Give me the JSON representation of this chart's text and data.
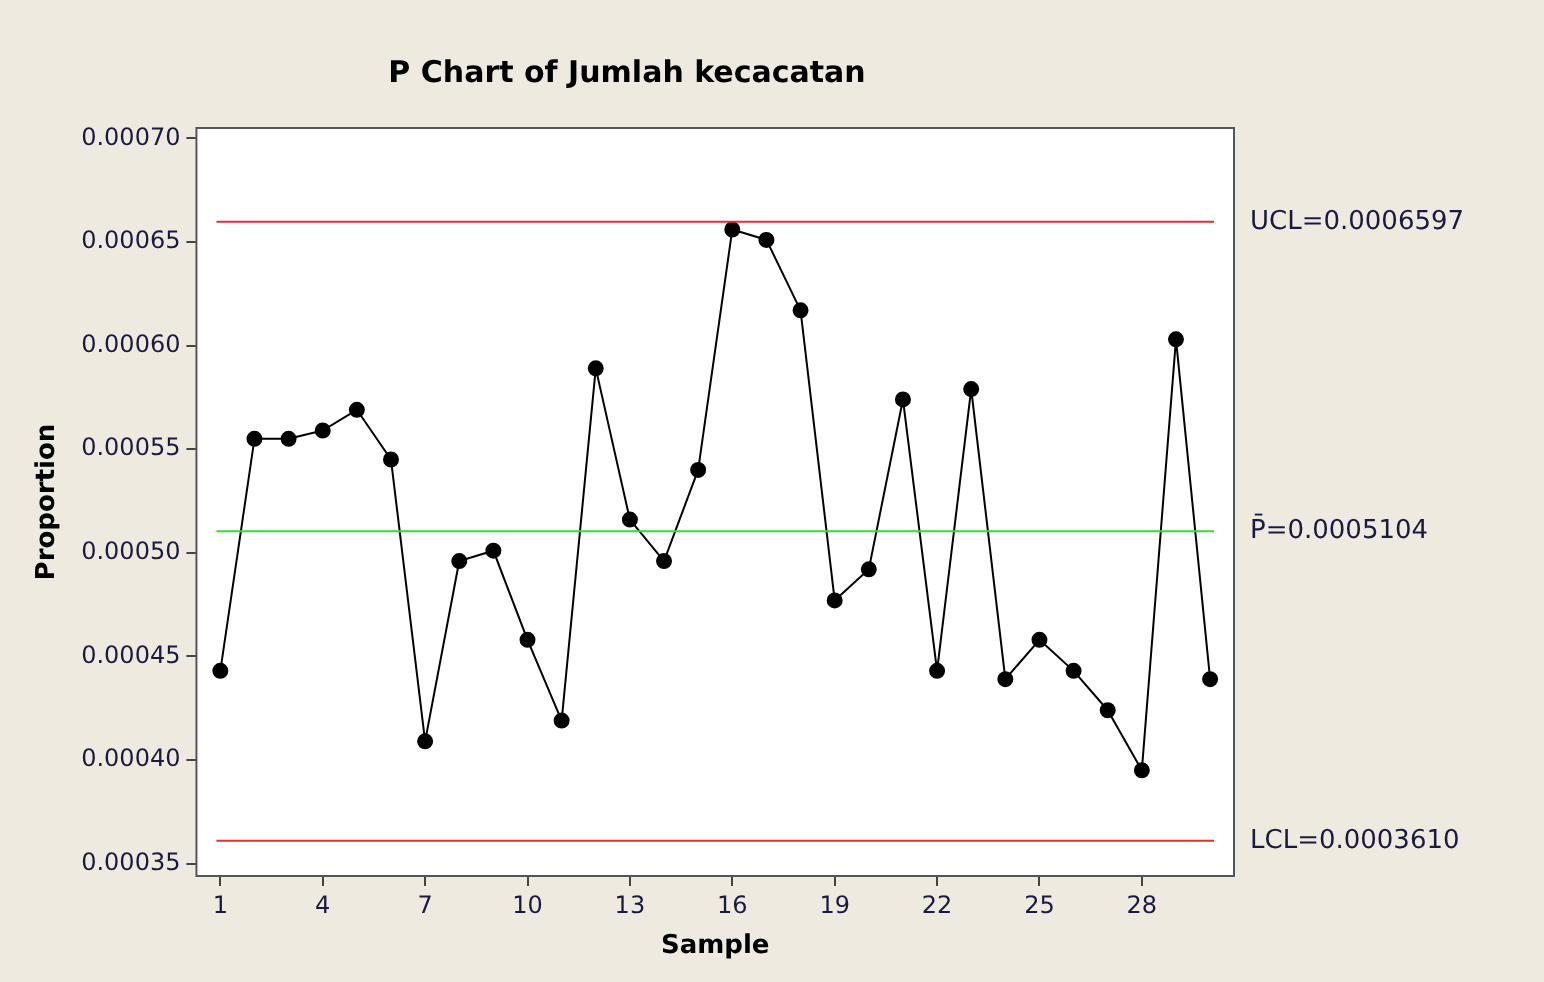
{
  "chart_data": {
    "type": "line",
    "title": "P Chart of Jumlah kecacatan",
    "xlabel": "Sample",
    "ylabel": "Proportion",
    "x": [
      1,
      2,
      3,
      4,
      5,
      6,
      7,
      8,
      9,
      10,
      11,
      12,
      13,
      14,
      15,
      16,
      17,
      18,
      19,
      20,
      21,
      22,
      23,
      24,
      25,
      26,
      27,
      28,
      29,
      30
    ],
    "series": [
      {
        "color": "#000000",
        "values": [
          0.000443,
          0.000555,
          0.000555,
          0.000559,
          0.000569,
          0.000545,
          0.000409,
          0.000496,
          0.000501,
          0.000458,
          0.000419,
          0.000589,
          0.000516,
          0.000496,
          0.00054,
          0.000656,
          0.000651,
          0.000617,
          0.000477,
          0.000492,
          0.000574,
          0.000443,
          0.000579,
          0.000439,
          0.000458,
          0.000443,
          0.000424,
          0.000395,
          0.000603,
          0.000439
        ]
      }
    ],
    "xlim": [
      0.3,
      30.7
    ],
    "xticks": [
      1,
      4,
      7,
      10,
      13,
      16,
      19,
      22,
      25,
      28
    ],
    "ylim": [
      0.000344,
      0.000705
    ],
    "yticks": [
      {
        "value": 0.00035,
        "label": "0.00035"
      },
      {
        "value": 0.0004,
        "label": "0.00040"
      },
      {
        "value": 0.00045,
        "label": "0.00045"
      },
      {
        "value": 0.0005,
        "label": "0.00050"
      },
      {
        "value": 0.00055,
        "label": "0.00055"
      },
      {
        "value": 0.0006,
        "label": "0.00060"
      },
      {
        "value": 0.00065,
        "label": "0.00065"
      },
      {
        "value": 0.0007,
        "label": "0.00070"
      }
    ],
    "ref_lines": [
      {
        "axis": "y",
        "value": 0.0006597,
        "label": "UCL=0.0006597",
        "color": "#e03030"
      },
      {
        "axis": "y",
        "value": 0.0005104,
        "label": "P̄=0.0005104",
        "color": "#33dd33"
      },
      {
        "axis": "y",
        "value": 0.000361,
        "label": "LCL=0.0003610",
        "color": "#e03030"
      }
    ],
    "grid": false,
    "legend": false,
    "marker": "circle",
    "line_style": "solid"
  }
}
